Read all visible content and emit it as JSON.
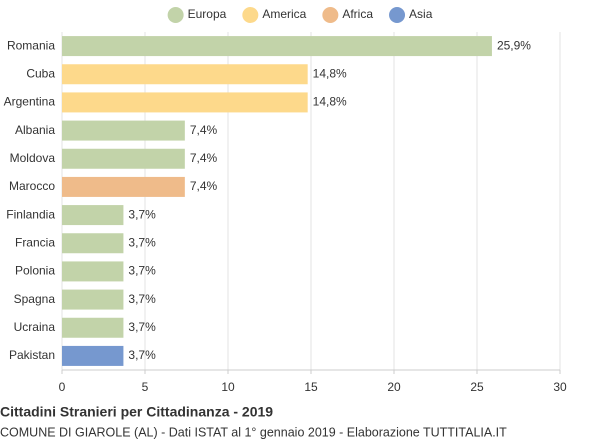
{
  "chart_data": {
    "type": "bar",
    "orientation": "horizontal",
    "title": "Cittadini Stranieri per Cittadinanza - 2019",
    "subtitle": "COMUNE DI GIAROLE (AL) - Dati ISTAT al 1° gennaio 2019 - Elaborazione TUTTITALIA.IT",
    "categories": [
      "Romania",
      "Cuba",
      "Argentina",
      "Albania",
      "Moldova",
      "Marocco",
      "Finlandia",
      "Francia",
      "Polonia",
      "Spagna",
      "Ucraina",
      "Pakistan"
    ],
    "series": [
      {
        "name": "Europa",
        "color": "#c2d3a9",
        "values": [
          25.9,
          null,
          null,
          7.4,
          7.4,
          null,
          3.7,
          3.7,
          3.7,
          3.7,
          3.7,
          null
        ],
        "value_labels": [
          "25,9%",
          null,
          null,
          "7,4%",
          "7,4%",
          null,
          "3,7%",
          "3,7%",
          "3,7%",
          "3,7%",
          "3,7%",
          null
        ]
      },
      {
        "name": "America",
        "color": "#fdd98b",
        "values": [
          null,
          14.8,
          14.8,
          null,
          null,
          null,
          null,
          null,
          null,
          null,
          null,
          null
        ],
        "value_labels": [
          null,
          "14,8%",
          "14,8%",
          null,
          null,
          null,
          null,
          null,
          null,
          null,
          null,
          null
        ]
      },
      {
        "name": "Africa",
        "color": "#efbb8a",
        "values": [
          null,
          null,
          null,
          null,
          null,
          7.4,
          null,
          null,
          null,
          null,
          null,
          null
        ],
        "value_labels": [
          null,
          null,
          null,
          null,
          null,
          "7,4%",
          null,
          null,
          null,
          null,
          null,
          null
        ]
      },
      {
        "name": "Asia",
        "color": "#7698cf",
        "values": [
          null,
          null,
          null,
          null,
          null,
          null,
          null,
          null,
          null,
          null,
          null,
          3.7
        ],
        "value_labels": [
          null,
          null,
          null,
          null,
          null,
          null,
          null,
          null,
          null,
          null,
          null,
          "3,7%"
        ]
      }
    ],
    "xlim": [
      0,
      30
    ],
    "xticks": [
      0,
      5,
      10,
      15,
      20,
      25,
      30
    ],
    "grid": true,
    "legend": "top"
  }
}
